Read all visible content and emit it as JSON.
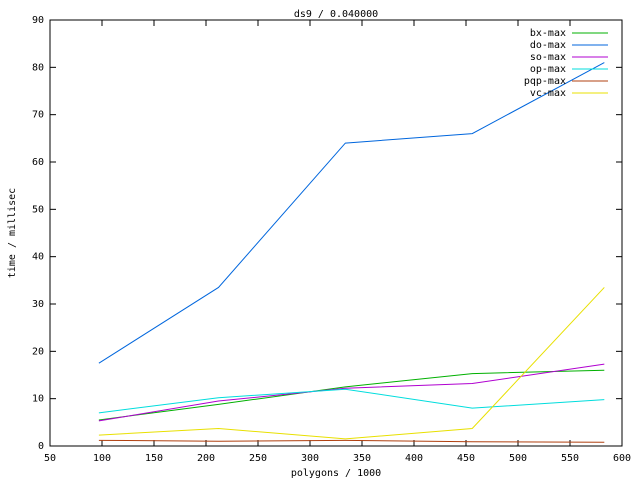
{
  "chart_data": {
    "type": "line",
    "title": "ds9 / 0.040000",
    "x_label": "polygons / 1000",
    "y_label": "time / millisec",
    "x": [
      97,
      212,
      334,
      456,
      583
    ],
    "series": [
      {
        "name": "bx-max",
        "color": "#00b000",
        "values": [
          5.5,
          8.8,
          12.5,
          15.3,
          16
        ]
      },
      {
        "name": "do-max",
        "color": "#0066dd",
        "values": [
          17.5,
          33.5,
          64,
          66,
          81
        ]
      },
      {
        "name": "so-max",
        "color": "#b000d0",
        "values": [
          5.3,
          9.5,
          12.2,
          13.2,
          17.3
        ]
      },
      {
        "name": "op-max",
        "color": "#00dddd",
        "values": [
          7,
          10.2,
          12,
          8,
          9.8
        ]
      },
      {
        "name": "pqp-max",
        "color": "#b04010",
        "values": [
          1.2,
          1,
          1.2,
          0.9,
          0.8
        ]
      },
      {
        "name": "vc-max",
        "color": "#e8e000",
        "values": [
          2.3,
          3.7,
          1.5,
          3.7,
          33.5
        ]
      }
    ],
    "xlim": [
      50,
      600
    ],
    "xticks": [
      50,
      100,
      150,
      200,
      250,
      300,
      350,
      400,
      450,
      500,
      550,
      600
    ],
    "ylim": [
      0,
      90
    ],
    "yticks": [
      0,
      10,
      20,
      30,
      40,
      50,
      60,
      70,
      80,
      90
    ],
    "grid": false,
    "legend": "top-right"
  }
}
